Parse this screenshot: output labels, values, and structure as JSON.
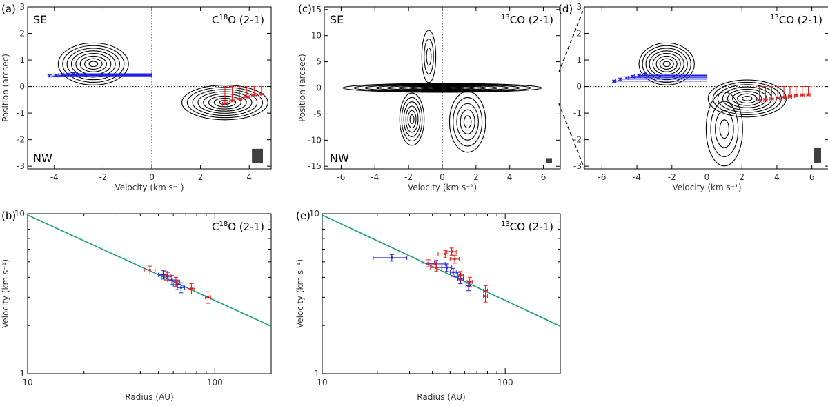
{
  "colors": {
    "blue": "#1f1fe0",
    "red": "#e01f1f",
    "fit": "#139e7e",
    "contour": "#000000",
    "beam": "#404040"
  },
  "chart_data": [
    {
      "type": "contour",
      "panel_label": "(a)",
      "title": "C18O (2-1)",
      "title_parts": {
        "pre": "C",
        "sup": "18",
        "post": "O (2-1)"
      },
      "corner_labels": {
        "top_left": "SE",
        "bottom_left": "NW"
      },
      "xlabel": "Velocity (km s⁻¹)",
      "ylabel": "Position (arcsec)",
      "xlim": [
        -5.1,
        4.9
      ],
      "ylim": [
        -3.1,
        3.0
      ],
      "xticks": [
        -4,
        -2,
        0,
        2,
        4
      ],
      "yticks": [
        -3,
        -2,
        -1,
        0,
        1,
        2,
        3
      ],
      "blobs": [
        {
          "cx": -2.4,
          "cy": 0.85,
          "rx": 1.55,
          "ry": 0.85,
          "levels": 8
        },
        {
          "cx": 3.0,
          "cy": -0.6,
          "rx": 1.9,
          "ry": 0.7,
          "levels": 8
        }
      ],
      "blue_points": [
        [
          -4.2,
          0.4
        ],
        [
          -3.95,
          0.42
        ],
        [
          -3.7,
          0.44
        ],
        [
          -3.45,
          0.46
        ],
        [
          -3.2,
          0.48
        ]
      ],
      "red_points": [
        [
          3.0,
          -0.65
        ],
        [
          3.3,
          -0.55
        ],
        [
          3.6,
          -0.48
        ],
        [
          3.9,
          -0.4
        ],
        [
          4.2,
          -0.33
        ],
        [
          4.5,
          -0.3
        ]
      ],
      "beam": {
        "w": 0.45,
        "h": 0.55
      }
    },
    {
      "type": "contour",
      "panel_label": "(c)",
      "title": "13CO (2-1)",
      "title_parts": {
        "pre": "",
        "sup": "13",
        "post": "CO (2-1)"
      },
      "corner_labels": {
        "top_left": "SE",
        "bottom_left": "NW"
      },
      "xlabel": "Velocity (km s⁻¹)",
      "ylabel": "Position (arcsec)",
      "xlim": [
        -7.0,
        7.0
      ],
      "ylim": [
        -15.5,
        15.5
      ],
      "xticks": [
        -6,
        -4,
        -2,
        0,
        2,
        4,
        6
      ],
      "yticks": [
        -15,
        -10,
        -5,
        0,
        5,
        10,
        15
      ],
      "blobs": [
        {
          "cx": 0.0,
          "cy": 0.0,
          "rx": 6.3,
          "ry": 0.9,
          "levels": 9
        },
        {
          "cx": -1.8,
          "cy": -6.0,
          "rx": 0.8,
          "ry": 5.5,
          "levels": 6
        },
        {
          "cx": 1.5,
          "cy": -6.5,
          "rx": 1.2,
          "ry": 6.5,
          "levels": 5
        },
        {
          "cx": -0.8,
          "cy": 6.0,
          "rx": 0.5,
          "ry": 6.0,
          "levels": 3
        }
      ],
      "blue_points": [],
      "red_points": [],
      "beam": {
        "w": 0.35,
        "h": 1.0
      }
    },
    {
      "type": "contour",
      "panel_label": "(d)",
      "title": "13CO (2-1)",
      "title_parts": {
        "pre": "",
        "sup": "13",
        "post": "CO (2-1)"
      },
      "corner_labels": {
        "top_left": "",
        "bottom_left": ""
      },
      "xlabel": "Velocity (km s⁻¹)",
      "ylabel": "",
      "xlim": [
        -7.0,
        7.0
      ],
      "ylim": [
        -3.1,
        3.0
      ],
      "xticks": [
        -6,
        -4,
        -2,
        0,
        2,
        4,
        6
      ],
      "yticks": [
        -3,
        -2,
        -1,
        0,
        1,
        2,
        3
      ],
      "blobs": [
        {
          "cx": -2.3,
          "cy": 0.85,
          "rx": 1.7,
          "ry": 0.85,
          "levels": 8
        },
        {
          "cx": 2.3,
          "cy": -0.45,
          "rx": 2.4,
          "ry": 0.75,
          "levels": 8
        },
        {
          "cx": 1.0,
          "cy": -1.6,
          "rx": 1.2,
          "ry": 1.6,
          "levels": 4
        }
      ],
      "blue_points": [
        [
          -5.3,
          0.2
        ],
        [
          -4.95,
          0.28
        ],
        [
          -4.6,
          0.33
        ],
        [
          -4.25,
          0.38
        ],
        [
          -3.9,
          0.42
        ],
        [
          -3.55,
          0.46
        ]
      ],
      "red_points": [
        [
          3.0,
          -0.52
        ],
        [
          3.35,
          -0.5
        ],
        [
          3.7,
          -0.47
        ],
        [
          4.05,
          -0.44
        ],
        [
          4.4,
          -0.41
        ],
        [
          4.75,
          -0.38
        ],
        [
          5.1,
          -0.35
        ],
        [
          5.45,
          -0.33
        ],
        [
          5.8,
          -0.32
        ]
      ],
      "beam": {
        "w": 0.4,
        "h": 0.6
      }
    },
    {
      "type": "scatter",
      "panel_label": "(b)",
      "title": "C18O (2-1)",
      "title_parts": {
        "pre": "C",
        "sup": "18",
        "post": "O (2-1)"
      },
      "xlabel": "Radius (AU)",
      "ylabel": "Velocity (km s⁻¹)",
      "log_x": true,
      "log_y": true,
      "xlim": [
        10,
        200
      ],
      "ylim": [
        1,
        10
      ],
      "xtick_labels": [
        {
          "v": 10,
          "t": "10"
        },
        {
          "v": 100,
          "t": "100"
        }
      ],
      "ytick_labels": [
        {
          "v": 1,
          "t": "1"
        },
        {
          "v": 10,
          "t": "10"
        }
      ],
      "fit_line": [
        [
          10,
          9.8
        ],
        [
          200,
          1.98
        ]
      ],
      "red_points": [
        {
          "x": 45,
          "y": 4.45,
          "xerr": 3,
          "yerr": 0.25
        },
        {
          "x": 55,
          "y": 4.1,
          "xerr": 3,
          "yerr": 0.25
        },
        {
          "x": 62,
          "y": 3.75,
          "xerr": 3,
          "yerr": 0.25
        },
        {
          "x": 75,
          "y": 3.4,
          "xerr": 3,
          "yerr": 0.25
        },
        {
          "x": 92,
          "y": 3.0,
          "xerr": 3,
          "yerr": 0.25
        }
      ],
      "blue_points": [
        {
          "x": 53,
          "y": 4.15,
          "xerr": 3,
          "yerr": 0.25
        },
        {
          "x": 56,
          "y": 4.05,
          "xerr": 3,
          "yerr": 0.25
        },
        {
          "x": 59,
          "y": 3.85,
          "xerr": 3,
          "yerr": 0.25
        },
        {
          "x": 63,
          "y": 3.6,
          "xerr": 3,
          "yerr": 0.25
        },
        {
          "x": 66,
          "y": 3.45,
          "xerr": 3,
          "yerr": 0.25
        }
      ]
    },
    {
      "type": "scatter",
      "panel_label": "(e)",
      "title": "13CO (2-1)",
      "title_parts": {
        "pre": "",
        "sup": "13",
        "post": "CO (2-1)"
      },
      "xlabel": "Radius (AU)",
      "ylabel": "Velocity (km s⁻¹)",
      "log_x": true,
      "log_y": true,
      "xlim": [
        10,
        200
      ],
      "ylim": [
        1,
        10
      ],
      "xtick_labels": [
        {
          "v": 10,
          "t": "10"
        },
        {
          "v": 100,
          "t": "100"
        }
      ],
      "ytick_labels": [
        {
          "v": 1,
          "t": "1"
        },
        {
          "v": 10,
          "t": "10"
        }
      ],
      "fit_line": [
        [
          10,
          9.8
        ],
        [
          200,
          1.98
        ]
      ],
      "red_points": [
        {
          "x": 38,
          "y": 4.9,
          "xerr": 3,
          "yerr": 0.25
        },
        {
          "x": 42,
          "y": 4.6,
          "xerr": 3,
          "yerr": 0.25
        },
        {
          "x": 47,
          "y": 5.6,
          "xerr": 4,
          "yerr": 0.3
        },
        {
          "x": 51,
          "y": 5.8,
          "xerr": 3,
          "yerr": 0.3
        },
        {
          "x": 53,
          "y": 5.2,
          "xerr": 3,
          "yerr": 0.3
        },
        {
          "x": 57,
          "y": 4.1,
          "xerr": 2,
          "yerr": 0.25
        },
        {
          "x": 64,
          "y": 3.75,
          "xerr": 2,
          "yerr": 0.25
        },
        {
          "x": 78,
          "y": 3.3,
          "xerr": 2,
          "yerr": 0.25
        },
        {
          "x": 78,
          "y": 3.05,
          "xerr": 2,
          "yerr": 0.25
        }
      ],
      "blue_points": [
        {
          "x": 24,
          "y": 5.3,
          "xerr": 5,
          "yerr": 0.25
        },
        {
          "x": 42,
          "y": 4.85,
          "xerr": 5,
          "yerr": 0.25
        },
        {
          "x": 48,
          "y": 4.6,
          "xerr": 3,
          "yerr": 0.25
        },
        {
          "x": 52,
          "y": 4.3,
          "xerr": 2,
          "yerr": 0.25
        },
        {
          "x": 55,
          "y": 4.05,
          "xerr": 2,
          "yerr": 0.25
        },
        {
          "x": 57,
          "y": 3.9,
          "xerr": 2,
          "yerr": 0.25
        },
        {
          "x": 63,
          "y": 3.55,
          "xerr": 2,
          "yerr": 0.25
        }
      ]
    }
  ]
}
